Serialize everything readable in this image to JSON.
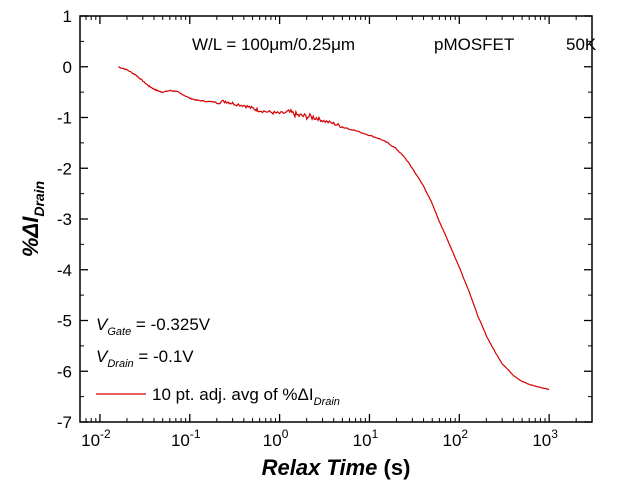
{
  "chart_data": {
    "type": "line",
    "x_scale": "log",
    "xlim": [
      0.006,
      3000
    ],
    "ylim": [
      -7,
      1
    ],
    "x_ticks": [
      {
        "value": 0.01,
        "base": "10",
        "exp": "-2"
      },
      {
        "value": 0.1,
        "base": "10",
        "exp": "-1"
      },
      {
        "value": 1,
        "base": "10",
        "exp": "0"
      },
      {
        "value": 10,
        "base": "10",
        "exp": "1"
      },
      {
        "value": 100,
        "base": "10",
        "exp": "2"
      },
      {
        "value": 1000,
        "base": "10",
        "exp": "3"
      }
    ],
    "y_ticks": [
      {
        "value": 1,
        "label": "1"
      },
      {
        "value": 0,
        "label": "0"
      },
      {
        "value": -1,
        "label": "-1"
      },
      {
        "value": -2,
        "label": "-2"
      },
      {
        "value": -3,
        "label": "-3"
      },
      {
        "value": -4,
        "label": "-4"
      },
      {
        "value": -5,
        "label": "-5"
      },
      {
        "value": -6,
        "label": "-6"
      },
      {
        "value": -7,
        "label": "-7"
      }
    ],
    "xlabel": {
      "main": "Relax Time",
      "unit": " (s)"
    },
    "ylabel": {
      "prefix": "%",
      "delta": "Δ",
      "var": "I",
      "sub": "Drain"
    },
    "annotation": {
      "device": "W/L = 100μm/0.25μm",
      "type": "pMOSFET",
      "temp": "50K"
    },
    "conditions": {
      "gate": {
        "var": "V",
        "sub": "Gate",
        "value": " = -0.325V"
      },
      "drain": {
        "var": "V",
        "sub": "Drain",
        "value": " = -0.1V"
      }
    },
    "legend": {
      "text": "10 pt. adj. avg of %ΔI",
      "sub": "Drain"
    },
    "series": [
      {
        "color": "#d40000",
        "points": [
          [
            0.016,
            0.0
          ],
          [
            0.02,
            -0.06
          ],
          [
            0.025,
            -0.16
          ],
          [
            0.03,
            -0.28
          ],
          [
            0.035,
            -0.38
          ],
          [
            0.04,
            -0.44
          ],
          [
            0.045,
            -0.48
          ],
          [
            0.05,
            -0.5
          ],
          [
            0.06,
            -0.47
          ],
          [
            0.07,
            -0.48
          ],
          [
            0.08,
            -0.53
          ],
          [
            0.1,
            -0.62
          ],
          [
            0.12,
            -0.66
          ],
          [
            0.15,
            -0.68
          ],
          [
            0.2,
            -0.7
          ],
          [
            0.25,
            -0.68
          ],
          [
            0.3,
            -0.72
          ],
          [
            0.4,
            -0.76
          ],
          [
            0.5,
            -0.82
          ],
          [
            0.6,
            -0.86
          ],
          [
            0.8,
            -0.9
          ],
          [
            1.0,
            -0.92
          ],
          [
            1.3,
            -0.9
          ],
          [
            1.6,
            -0.96
          ],
          [
            2.0,
            -0.98
          ],
          [
            2.5,
            -1.0
          ],
          [
            3.0,
            -1.06
          ],
          [
            4.0,
            -1.12
          ],
          [
            5.0,
            -1.18
          ],
          [
            7.0,
            -1.26
          ],
          [
            10,
            -1.35
          ],
          [
            13,
            -1.42
          ],
          [
            16,
            -1.5
          ],
          [
            20,
            -1.62
          ],
          [
            25,
            -1.8
          ],
          [
            30,
            -2.0
          ],
          [
            40,
            -2.35
          ],
          [
            50,
            -2.7
          ],
          [
            60,
            -3.05
          ],
          [
            80,
            -3.55
          ],
          [
            100,
            -3.95
          ],
          [
            130,
            -4.45
          ],
          [
            160,
            -4.9
          ],
          [
            200,
            -5.3
          ],
          [
            250,
            -5.62
          ],
          [
            300,
            -5.85
          ],
          [
            400,
            -6.08
          ],
          [
            500,
            -6.2
          ],
          [
            600,
            -6.26
          ],
          [
            800,
            -6.32
          ],
          [
            1000,
            -6.36
          ]
        ]
      }
    ]
  }
}
